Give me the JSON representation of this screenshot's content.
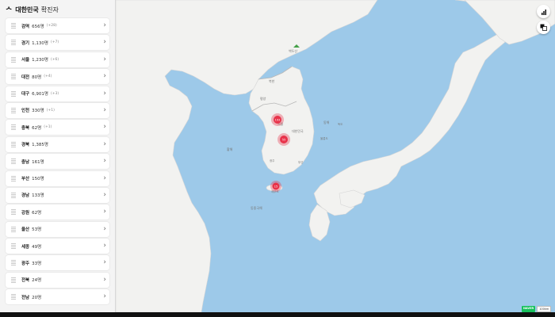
{
  "header": {
    "logo": "ᄉ",
    "country": "대한민국",
    "suffix": "확진자"
  },
  "regions": [
    {
      "name": "검역",
      "count": "656명",
      "delta": "(+28)"
    },
    {
      "name": "경기",
      "count": "1,130명",
      "delta": "(+7)"
    },
    {
      "name": "서울",
      "count": "1,230명",
      "delta": "(+6)"
    },
    {
      "name": "대전",
      "count": "80명",
      "delta": "(+4)"
    },
    {
      "name": "대구",
      "count": "6,901명",
      "delta": "(+3)"
    },
    {
      "name": "인천",
      "count": "330명",
      "delta": "(+1)"
    },
    {
      "name": "충북",
      "count": "62명",
      "delta": "(+1)"
    },
    {
      "name": "경북",
      "count": "1,385명",
      "delta": ""
    },
    {
      "name": "충남",
      "count": "161명",
      "delta": ""
    },
    {
      "name": "부산",
      "count": "150명",
      "delta": ""
    },
    {
      "name": "경남",
      "count": "133명",
      "delta": ""
    },
    {
      "name": "강원",
      "count": "62명",
      "delta": ""
    },
    {
      "name": "울산",
      "count": "53명",
      "delta": ""
    },
    {
      "name": "세종",
      "count": "49명",
      "delta": ""
    },
    {
      "name": "광주",
      "count": "33명",
      "delta": ""
    },
    {
      "name": "전북",
      "count": "24명",
      "delta": ""
    },
    {
      "name": "전남",
      "count": "20명",
      "delta": ""
    }
  ],
  "map": {
    "markers": [
      {
        "label": "193"
      },
      {
        "label": "55"
      },
      {
        "label": "15"
      }
    ],
    "labels": [
      "백두산",
      "평양",
      "북한",
      "서울",
      "대한민국",
      "동해",
      "울릉도",
      "독도",
      "황해",
      "광주",
      "부산",
      "제주도",
      "동중국해"
    ],
    "water_color": "#9dc9e9",
    "land_color": "#f2f2f0",
    "marker_color": "#e8334a"
  },
  "buttons": {
    "stats_icon": "bar-chart-icon",
    "translate_icon": "translate-icon"
  },
  "attribution": {
    "naver": "NAVER",
    "scale": "100km"
  }
}
